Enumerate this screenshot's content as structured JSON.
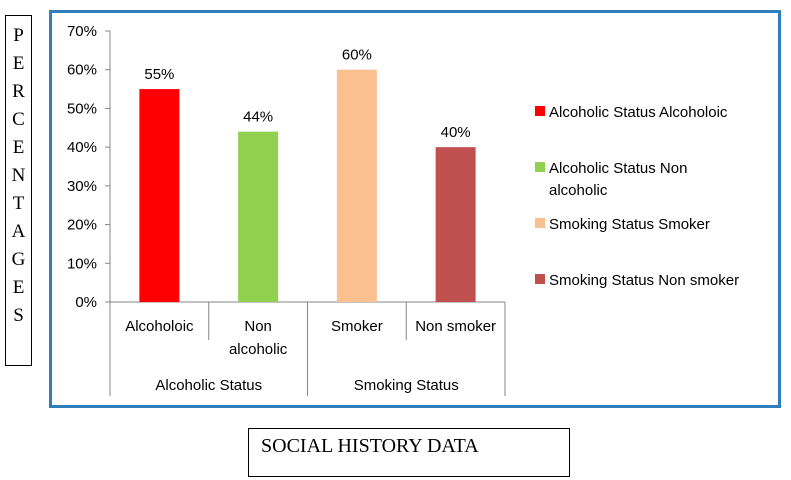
{
  "page_title": "SOCIAL HISTORY DATA",
  "ylabel_letters": [
    "P",
    "E",
    "R",
    "C",
    "E",
    "N",
    "T",
    "A",
    "G",
    "E",
    "S"
  ],
  "chart_data": {
    "type": "bar",
    "title": "SOCIAL HISTORY DATA",
    "ylabel": "PERCENTAGES",
    "ylim": [
      0,
      70
    ],
    "yticks": [
      0,
      10,
      20,
      30,
      40,
      50,
      60,
      70
    ],
    "ytick_labels": [
      "0%",
      "10%",
      "20%",
      "30%",
      "40%",
      "50%",
      "60%",
      "70%"
    ],
    "grid": false,
    "legend_position": "right",
    "categories": [
      {
        "label": [
          "Alcoholoic"
        ],
        "group": "Alcoholic Status"
      },
      {
        "label": [
          "Non",
          "alcoholic"
        ],
        "group": "Alcoholic Status"
      },
      {
        "label": [
          "Smoker"
        ],
        "group": "Smoking Status"
      },
      {
        "label": [
          "Non smoker"
        ],
        "group": "Smoking Status"
      }
    ],
    "groups": [
      "Alcoholic Status",
      "Smoking Status"
    ],
    "series": [
      {
        "name": "Alcoholic Status Alcoholoic",
        "value": 55,
        "data_label": "55%",
        "color": "#ff0000"
      },
      {
        "name": "Alcoholic Status Non alcoholic",
        "value": 44,
        "data_label": "44%",
        "color": "#92d050"
      },
      {
        "name": "Smoking Status Smoker",
        "value": 60,
        "data_label": "60%",
        "color": "#fac090"
      },
      {
        "name": "Smoking Status Non smoker",
        "value": 40,
        "data_label": "40%",
        "color": "#c0504d"
      }
    ],
    "legend": [
      {
        "lines": [
          "Alcoholic Status Alcoholoic"
        ],
        "color": "#ff0000"
      },
      {
        "lines": [
          "Alcoholic Status Non",
          "alcoholic"
        ],
        "color": "#92d050"
      },
      {
        "lines": [
          "Smoking Status Smoker"
        ],
        "color": "#fac090"
      },
      {
        "lines": [
          "Smoking Status Non smoker"
        ],
        "color": "#c0504d"
      }
    ]
  }
}
